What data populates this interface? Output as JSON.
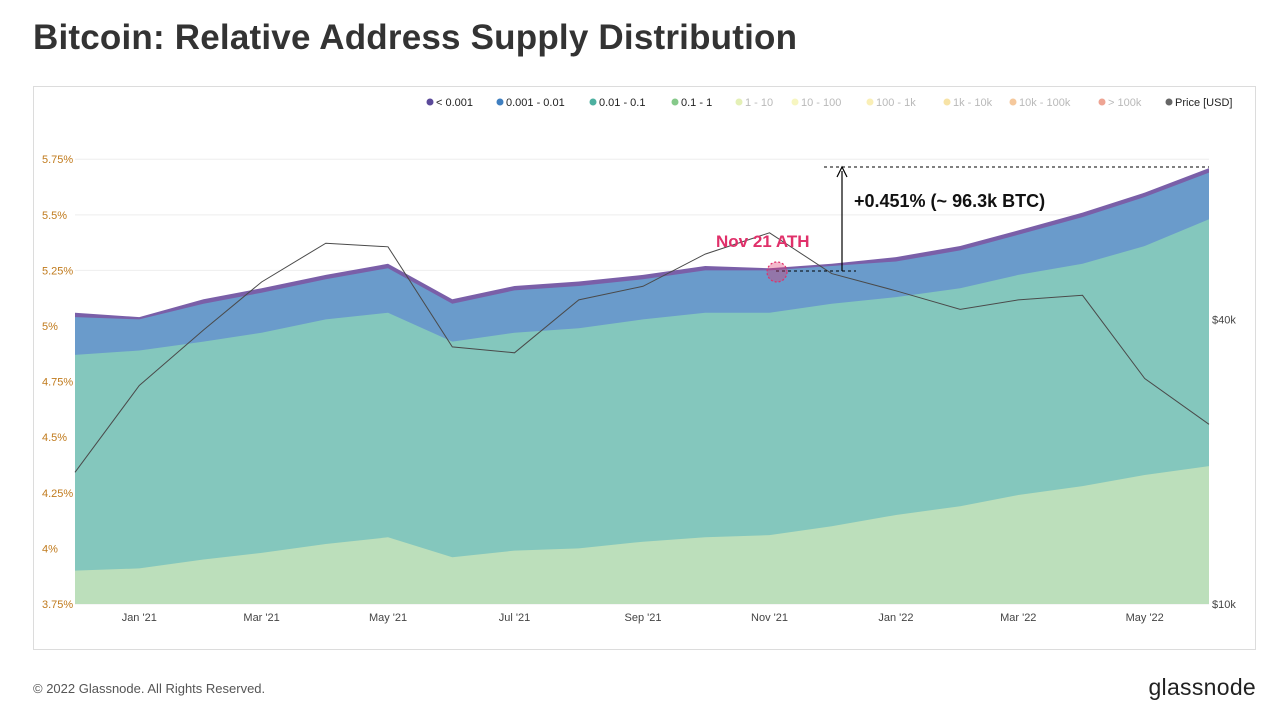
{
  "title": "Bitcoin: Relative Address Supply Distribution",
  "footer": {
    "copyright": "© 2022 Glassnode. All Rights Reserved.",
    "logo": "glassnode"
  },
  "watermark": "glassnode",
  "annotations": {
    "ath_label": "Nov 21 ATH",
    "delta_label": "+0.451% (~ 96.3k BTC)"
  },
  "colors": {
    "lt_0001": "#7a5fa8",
    "b0001_001": "#6a9bcb",
    "b001_01": "#84c7bd",
    "b01_1": "#bcdfbb",
    "price": "#555555",
    "annotation_pink": "#e0306a"
  },
  "chart_data": {
    "type": "area",
    "title": "Bitcoin: Relative Address Supply Distribution",
    "x": [
      "2020-12-01",
      "2021-01-01",
      "2021-02-01",
      "2021-03-01",
      "2021-04-01",
      "2021-05-01",
      "2021-06-01",
      "2021-07-01",
      "2021-08-01",
      "2021-09-01",
      "2021-10-01",
      "2021-11-01",
      "2021-12-01",
      "2022-01-01",
      "2022-02-01",
      "2022-03-01",
      "2022-04-01",
      "2022-05-01",
      "2022-06-01"
    ],
    "x_ticks": [
      "Jan '21",
      "Mar '21",
      "May '21",
      "Jul '21",
      "Sep '21",
      "Nov '21",
      "Jan '22",
      "Mar '22",
      "May '22"
    ],
    "yaxis_left": {
      "ticks": [
        "3.75%",
        "4%",
        "4.25%",
        "4.5%",
        "4.75%",
        "5%",
        "5.25%",
        "5.5%",
        "5.75%"
      ],
      "range": [
        3.75,
        5.85
      ]
    },
    "yaxis_right": {
      "ticks": [
        "$10k",
        "$40k"
      ],
      "scale": "log",
      "range": [
        10000,
        90000
      ]
    },
    "legend_position": "top-right",
    "legend": [
      {
        "label": "< 0.001",
        "color": "#5b4a9a",
        "active": true
      },
      {
        "label": "0.001 - 0.01",
        "color": "#3f7fc0",
        "active": true
      },
      {
        "label": "0.01 - 0.1",
        "color": "#4db0a0",
        "active": true
      },
      {
        "label": "0.1 - 1",
        "color": "#86c98a",
        "active": true
      },
      {
        "label": "1 - 10",
        "color": "#cde47a",
        "active": false
      },
      {
        "label": "10 - 100",
        "color": "#f1ee8e",
        "active": false
      },
      {
        "label": "100 - 1k",
        "color": "#f5e17a",
        "active": false
      },
      {
        "label": "1k - 10k",
        "color": "#f0cc5c",
        "active": false
      },
      {
        "label": "10k - 100k",
        "color": "#ec9a4a",
        "active": false
      },
      {
        "label": "> 100k",
        "color": "#e05a3a",
        "active": false
      },
      {
        "label": "Price [USD]",
        "color": "#666666",
        "active": true
      }
    ],
    "series": [
      {
        "name": "0.1 - 1",
        "values": [
          3.9,
          3.91,
          3.95,
          3.98,
          4.02,
          4.05,
          3.96,
          3.99,
          4.0,
          4.03,
          4.05,
          4.06,
          4.1,
          4.15,
          4.19,
          4.24,
          4.28,
          4.33,
          4.37
        ]
      },
      {
        "name": "0.01 - 0.1",
        "values": [
          4.87,
          4.89,
          4.93,
          4.97,
          5.03,
          5.06,
          4.93,
          4.97,
          4.99,
          5.03,
          5.06,
          5.06,
          5.1,
          5.13,
          5.17,
          5.23,
          5.28,
          5.36,
          5.48
        ]
      },
      {
        "name": "0.001 - 0.01",
        "values": [
          5.04,
          5.03,
          5.1,
          5.15,
          5.21,
          5.26,
          5.1,
          5.16,
          5.18,
          5.21,
          5.25,
          5.25,
          5.27,
          5.29,
          5.34,
          5.41,
          5.49,
          5.58,
          5.69
        ]
      },
      {
        "name": "< 0.001",
        "values": [
          5.06,
          5.04,
          5.12,
          5.17,
          5.23,
          5.28,
          5.12,
          5.18,
          5.2,
          5.23,
          5.27,
          5.26,
          5.28,
          5.31,
          5.36,
          5.43,
          5.51,
          5.6,
          5.71
        ]
      },
      {
        "name": "Price [USD]",
        "axis": "right",
        "values": [
          19000,
          29000,
          38000,
          48000,
          58000,
          57000,
          35000,
          34000,
          44000,
          47000,
          55000,
          61000,
          50000,
          46000,
          42000,
          44000,
          45000,
          30000,
          24000
        ]
      }
    ]
  }
}
